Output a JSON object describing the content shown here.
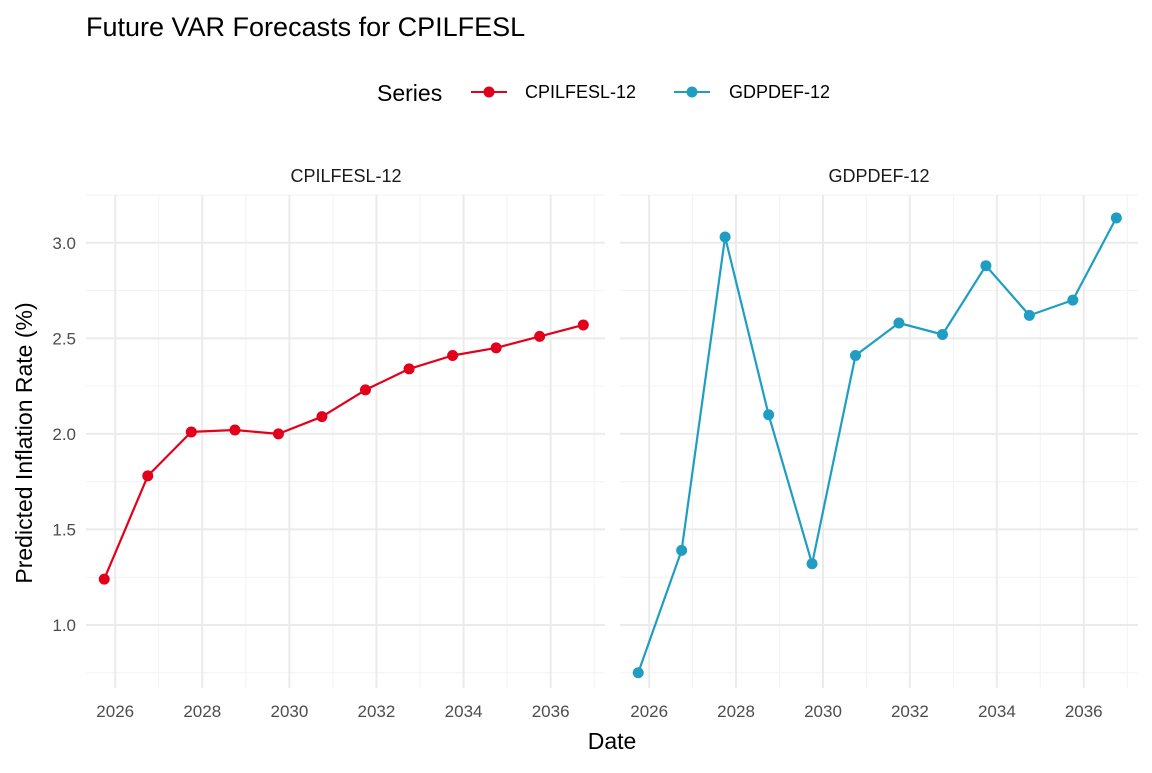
{
  "chart_data": {
    "type": "line",
    "title": "Future VAR Forecasts for CPILFESL",
    "xlabel": "Date",
    "ylabel": "Predicted Inflation Rate (%)",
    "legend": {
      "title": "Series",
      "position": "top",
      "entries": [
        "CPILFESL-12",
        "GDPDEF-12"
      ]
    },
    "colors": {
      "CPILFESL-12": "#E3001B",
      "GDPDEF-12": "#1F9EC1",
      "grid_major": "#EBEBEB",
      "grid_minor": "#F4F4F4",
      "axis_text": "#4D4D4D"
    },
    "x_ticks": [
      "2026",
      "2028",
      "2030",
      "2032",
      "2034",
      "2036"
    ],
    "y_ticks": [
      "1.0",
      "1.5",
      "2.0",
      "2.5",
      "3.0"
    ],
    "xlim": [
      "2025-05-01",
      "2037-04-01"
    ],
    "ylim": [
      0.67,
      3.25
    ],
    "grid": true,
    "facets": [
      {
        "label": "CPILFESL-12",
        "series": [
          {
            "name": "CPILFESL-12",
            "points": [
              [
                "2025-10-01",
                1.24
              ],
              [
                "2026-10-01",
                1.78
              ],
              [
                "2027-10-01",
                2.01
              ],
              [
                "2028-10-01",
                2.02
              ],
              [
                "2029-10-01",
                2.0
              ],
              [
                "2030-10-01",
                2.09
              ],
              [
                "2031-10-01",
                2.23
              ],
              [
                "2032-10-01",
                2.34
              ],
              [
                "2033-10-01",
                2.41
              ],
              [
                "2034-10-01",
                2.45
              ],
              [
                "2035-10-01",
                2.51
              ],
              [
                "2036-10-01",
                2.57
              ]
            ]
          }
        ]
      },
      {
        "label": "GDPDEF-12",
        "series": [
          {
            "name": "GDPDEF-12",
            "points": [
              [
                "2025-10-01",
                0.75
              ],
              [
                "2026-10-01",
                1.39
              ],
              [
                "2027-10-01",
                3.03
              ],
              [
                "2028-10-01",
                2.1
              ],
              [
                "2029-10-01",
                1.32
              ],
              [
                "2030-10-01",
                2.41
              ],
              [
                "2031-10-01",
                2.58
              ],
              [
                "2032-10-01",
                2.52
              ],
              [
                "2033-10-01",
                2.88
              ],
              [
                "2034-10-01",
                2.62
              ],
              [
                "2035-10-01",
                2.7
              ],
              [
                "2036-10-01",
                3.13
              ]
            ]
          }
        ]
      }
    ]
  }
}
